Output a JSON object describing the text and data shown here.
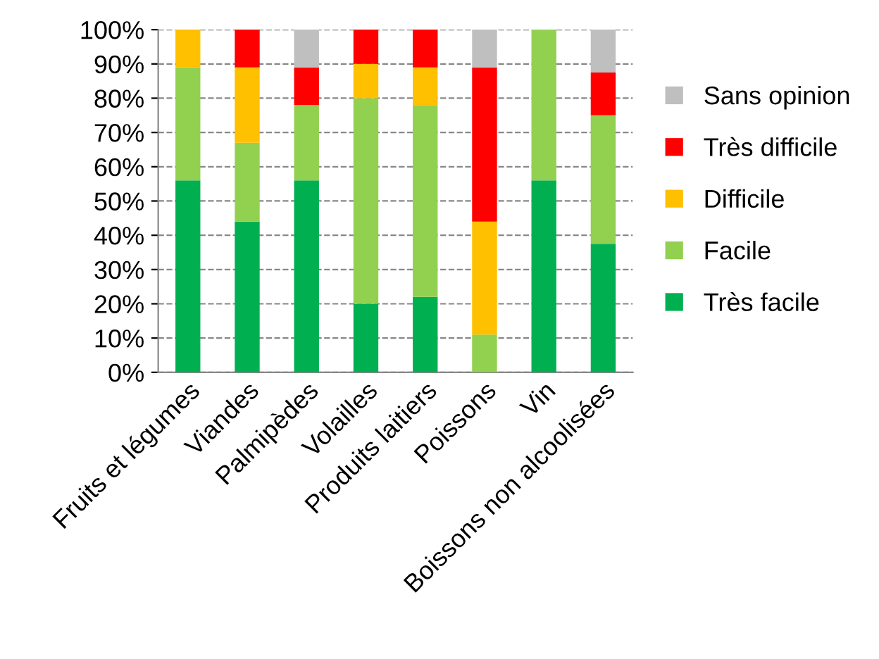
{
  "chart_data": {
    "type": "bar",
    "stacked": true,
    "categories": [
      "Fruits et légumes",
      "Viandes",
      "Palmipèdes",
      "Volailles",
      "Produits laitiers",
      "Poissons",
      "Vin",
      "Boissons non alcoolisées"
    ],
    "series": [
      {
        "name": "Très facile",
        "color": "#00b050",
        "values": [
          56,
          44,
          56,
          20,
          22,
          0,
          56,
          37.5
        ]
      },
      {
        "name": "Facile",
        "color": "#92d050",
        "values": [
          33,
          23,
          22,
          60,
          56,
          11,
          44,
          37.5
        ]
      },
      {
        "name": "Difficile",
        "color": "#ffc000",
        "values": [
          11,
          22,
          0,
          10,
          11,
          33,
          0,
          0
        ]
      },
      {
        "name": "Très difficile",
        "color": "#ff0000",
        "values": [
          0,
          11,
          11,
          10,
          11,
          45,
          0,
          12.5
        ]
      },
      {
        "name": "Sans opinion",
        "color": "#bfbfbf",
        "values": [
          0,
          0,
          11,
          0,
          0,
          11,
          0,
          12.5
        ]
      }
    ],
    "ylim": [
      0,
      100
    ],
    "yticks": [
      {
        "value": 0,
        "label": "0%"
      },
      {
        "value": 10,
        "label": "10%"
      },
      {
        "value": 20,
        "label": "20%"
      },
      {
        "value": 30,
        "label": "30%"
      },
      {
        "value": 40,
        "label": "40%"
      },
      {
        "value": 50,
        "label": "50%"
      },
      {
        "value": 60,
        "label": "60%"
      },
      {
        "value": 70,
        "label": "70%"
      },
      {
        "value": 80,
        "label": "80%"
      },
      {
        "value": 90,
        "label": "90%"
      },
      {
        "value": 100,
        "label": "100%"
      }
    ],
    "grid": "y",
    "line_style": "dashed",
    "legend": "right"
  }
}
